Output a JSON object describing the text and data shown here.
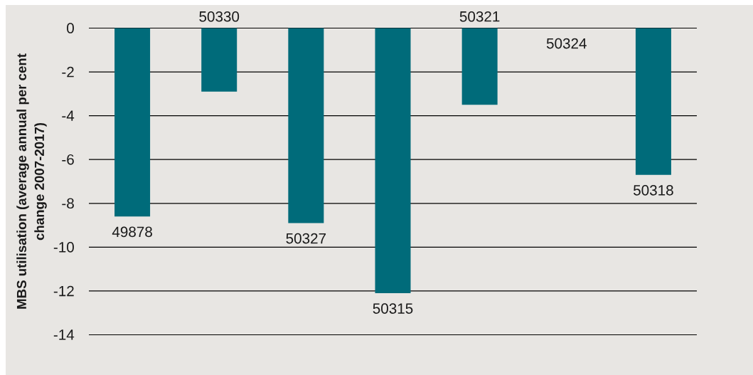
{
  "chart_data": {
    "type": "bar",
    "ylabel": "MBS utilisation (average annual per cent change 2007-2017)",
    "categories": [
      "49878",
      "50330",
      "50327",
      "50315",
      "50321",
      "50324",
      "50318"
    ],
    "values": [
      -8.6,
      -2.9,
      -8.9,
      -12.1,
      -3.5,
      0,
      -6.7
    ],
    "color": "#006b7a",
    "ylim": [
      -14,
      0
    ],
    "yticks": [
      -14,
      -12,
      -10,
      -8,
      -6,
      -4,
      -2,
      0
    ],
    "grid": "y"
  }
}
